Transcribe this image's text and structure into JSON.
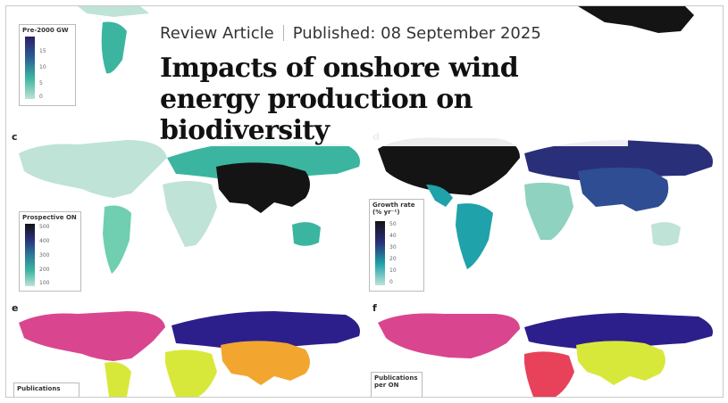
{
  "article": {
    "type": "Review Article",
    "published": "Published: 08 September 2025",
    "title": "Impacts of onshore wind energy production on biodiversity"
  },
  "panels": {
    "c": {
      "letter": "c",
      "legend_title": "Prospective ON",
      "ticks": [
        "500",
        "400",
        "300",
        "200",
        "100"
      ]
    },
    "d": {
      "letter": "d",
      "legend_title": "Growth rate (% yr⁻¹)",
      "ticks": [
        "50",
        "40",
        "30",
        "20",
        "10",
        "0"
      ]
    },
    "e": {
      "letter": "e",
      "legend_title": "Publications"
    },
    "f": {
      "letter": "f",
      "legend_title": "Publications per ON"
    },
    "b": {
      "legend_title": "Pre-2000 GW",
      "ticks": [
        "15",
        "10",
        "5",
        "0"
      ]
    }
  },
  "colors": {
    "light_teal": "#bfe3d6",
    "mid_teal": "#3bb5a0",
    "teal": "#1fa2a9",
    "navy": "#2a2f7a",
    "indigo": "#2c1f8c",
    "black": "#141414",
    "pink": "#d9468f",
    "yellow": "#d8e83a",
    "orange": "#f2a630",
    "coral": "#e8415a"
  }
}
